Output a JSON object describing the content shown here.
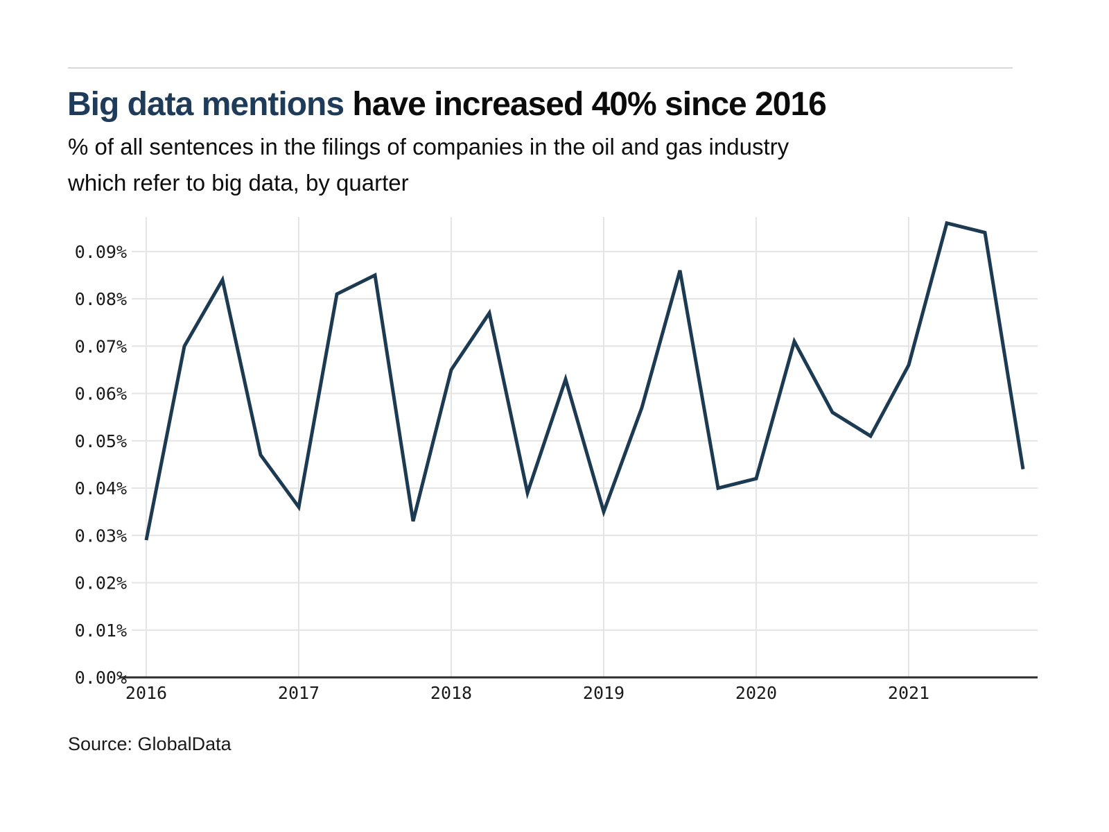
{
  "header": {
    "title_highlight": "Big data mentions",
    "title_rest": " have increased 40% since 2016",
    "highlight_color": "#1e3c5a",
    "subtitle_line1": "% of all sentences in the filings of companies in the oil and gas industry",
    "subtitle_line2": "which refer to big data, by quarter"
  },
  "footer": {
    "source": "Source: GlobalData"
  },
  "chart_data": {
    "type": "line",
    "title": "Big data mentions have increased 40% since 2016",
    "subtitle": "% of all sentences in the filings of companies in the oil and gas industry which refer to big data, by quarter",
    "unit": "%",
    "categories": [
      "2016 Q1",
      "2016 Q2",
      "2016 Q3",
      "2016 Q4",
      "2017 Q1",
      "2017 Q2",
      "2017 Q3",
      "2017 Q4",
      "2018 Q1",
      "2018 Q2",
      "2018 Q3",
      "2018 Q4",
      "2019 Q1",
      "2019 Q2",
      "2019 Q3",
      "2019 Q4",
      "2020 Q1",
      "2020 Q2",
      "2020 Q3",
      "2020 Q4",
      "2021 Q1",
      "2021 Q2",
      "2021 Q3",
      "2021 Q4"
    ],
    "values": [
      0.029,
      0.07,
      0.084,
      0.047,
      0.036,
      0.081,
      0.085,
      0.033,
      0.065,
      0.077,
      0.039,
      0.063,
      0.035,
      0.057,
      0.086,
      0.04,
      0.042,
      0.071,
      0.056,
      0.051,
      0.066,
      0.096,
      0.094,
      0.044
    ],
    "x_tick_labels": [
      "2016",
      "2017",
      "2018",
      "2019",
      "2020",
      "2021"
    ],
    "y_tick_labels": [
      "0.00%",
      "0.01%",
      "0.02%",
      "0.03%",
      "0.04%",
      "0.05%",
      "0.06%",
      "0.07%",
      "0.08%",
      "0.09%"
    ],
    "ylim": [
      0,
      0.098
    ],
    "y_tick_step": 0.01,
    "grid": "on",
    "legend": "none",
    "line_color": "#1d3a53",
    "gridline_color": "#e4e4e4",
    "axis_color": "#2e2e2e"
  }
}
